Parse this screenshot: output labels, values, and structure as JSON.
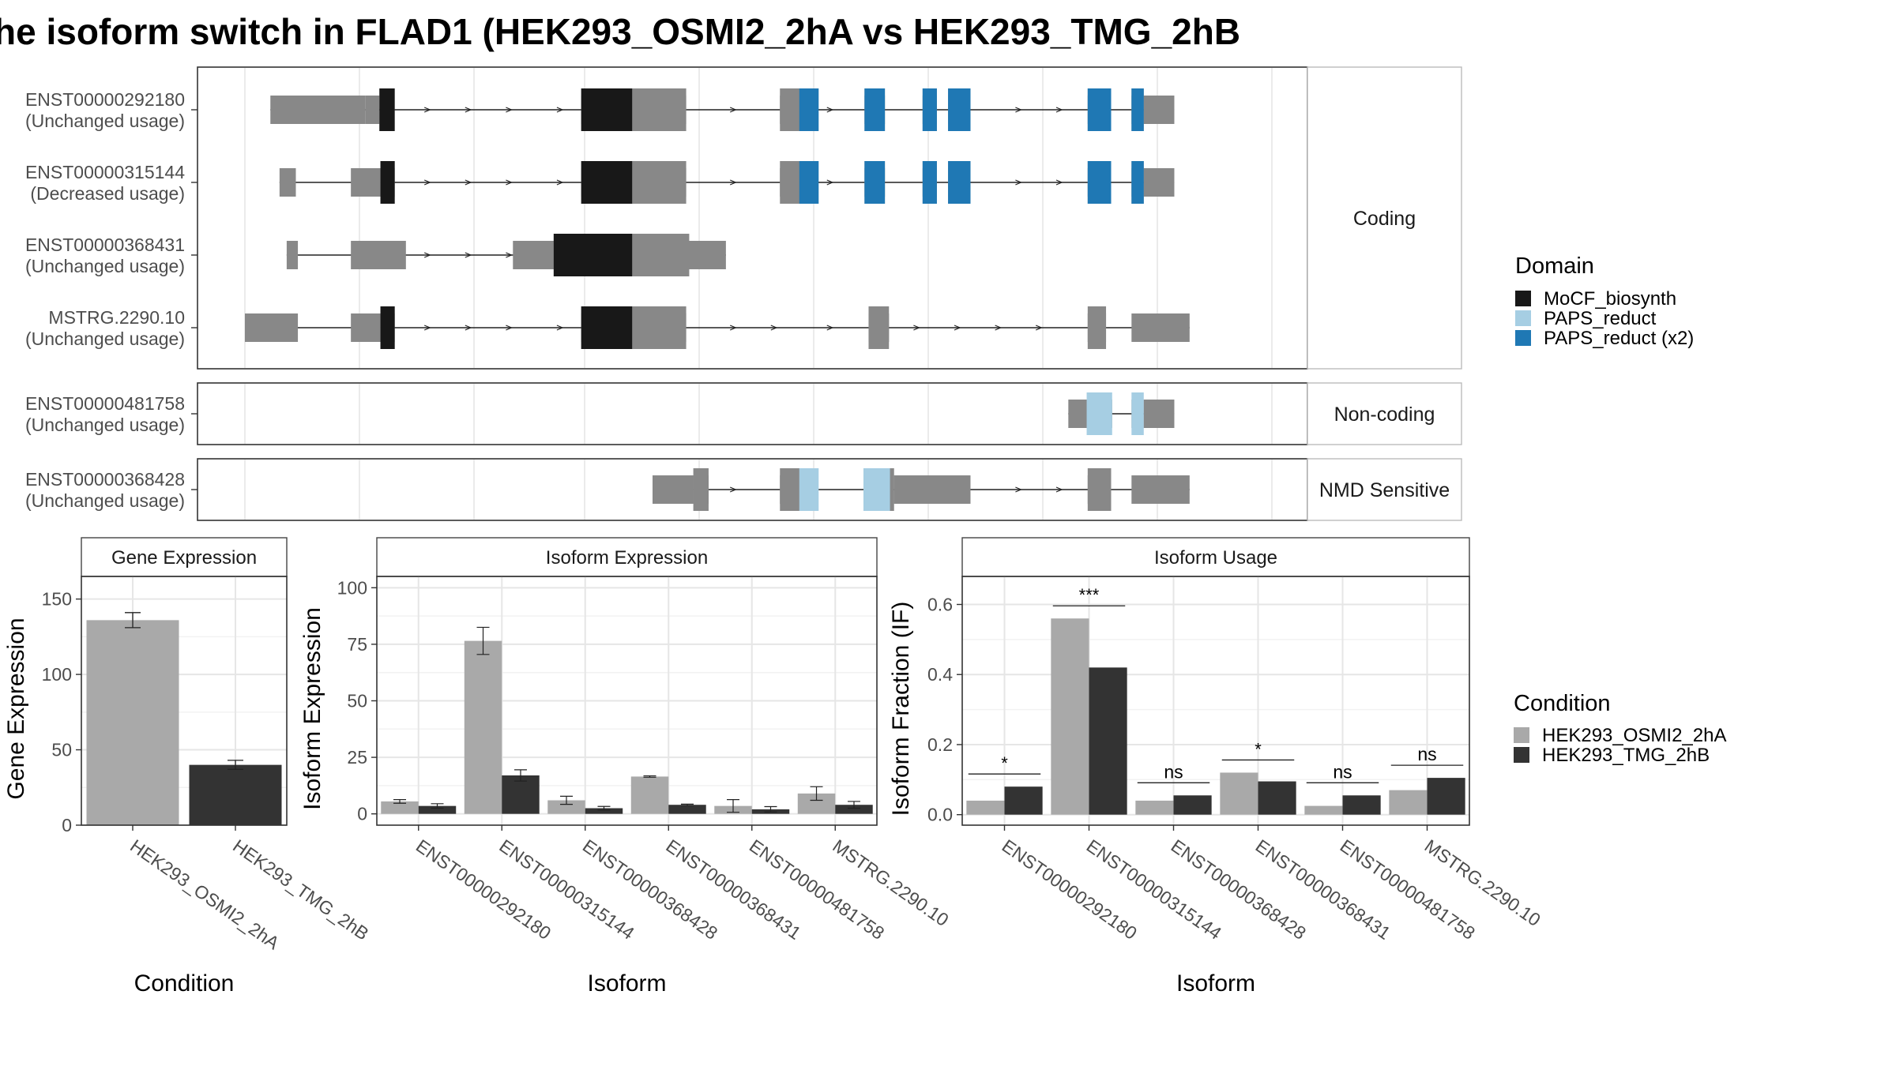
{
  "title": "he isoform switch in FLAD1 (HEK293_OSMI2_2hA vs HEK293_TMG_2hB",
  "colors": {
    "exon": "#888888",
    "mocf": "#181818",
    "paps": "#a6cee3",
    "paps2": "#1f78b4",
    "cond1": "#a9a9a9",
    "cond2": "#333333"
  },
  "structure": {
    "xlim": [
      0,
      1000
    ],
    "panels": [
      {
        "label": "Coding",
        "isoforms": [
          {
            "id": "ENST00000292180",
            "usage": "(Unchanged usage)",
            "utr": [
              [
                25,
                118
              ],
              [
                118,
                132
              ],
              [
                330,
                433
              ],
              [
                525,
                547
              ],
              [
                608,
                628
              ],
              [
                665,
                679
              ],
              [
                690,
                712
              ],
              [
                827,
                850
              ],
              [
                870,
                882
              ],
              [
                882,
                912
              ]
            ],
            "cds": [
              [
                132,
                147
              ],
              [
                330,
                433
              ],
              [
                525,
                547
              ],
              [
                608,
                628
              ],
              [
                665,
                679
              ],
              [
                690,
                712
              ],
              [
                827,
                850
              ],
              [
                870,
                882
              ]
            ],
            "domains": [
              [
                132,
                147,
                "mocf"
              ],
              [
                330,
                380,
                "mocf"
              ],
              [
                544,
                563,
                "paps2"
              ],
              [
                608,
                628,
                "paps2"
              ],
              [
                665,
                679,
                "paps2"
              ],
              [
                690,
                712,
                "paps2"
              ],
              [
                827,
                850,
                "paps2"
              ],
              [
                870,
                882,
                "paps2"
              ]
            ],
            "arrows": [
              180,
              220,
              260,
              310,
              480,
              575,
              700,
              760,
              800
            ],
            "intron": [
              25,
              912
            ]
          },
          {
            "id": "ENST00000315144",
            "usage": "(Decreased usage)",
            "utr": [
              [
                34,
                50
              ],
              [
                104,
                133
              ],
              [
                133,
                147
              ],
              [
                330,
                433
              ],
              [
                525,
                547
              ],
              [
                608,
                628
              ],
              [
                665,
                679
              ],
              [
                690,
                712
              ],
              [
                827,
                850
              ],
              [
                870,
                882
              ],
              [
                882,
                912
              ]
            ],
            "cds": [
              [
                133,
                147
              ],
              [
                330,
                433
              ],
              [
                525,
                547
              ],
              [
                608,
                628
              ],
              [
                665,
                679
              ],
              [
                690,
                712
              ],
              [
                827,
                850
              ],
              [
                870,
                882
              ]
            ],
            "domains": [
              [
                133,
                147,
                "mocf"
              ],
              [
                330,
                380,
                "mocf"
              ],
              [
                544,
                563,
                "paps2"
              ],
              [
                608,
                628,
                "paps2"
              ],
              [
                665,
                679,
                "paps2"
              ],
              [
                690,
                712,
                "paps2"
              ],
              [
                827,
                850,
                "paps2"
              ],
              [
                870,
                882,
                "paps2"
              ]
            ],
            "arrows": [
              180,
              220,
              260,
              310,
              480,
              575,
              700,
              760,
              800
            ],
            "intron": [
              34,
              912
            ]
          },
          {
            "id": "ENST00000368431",
            "usage": "(Unchanged usage)",
            "utr": [
              [
                41,
                52
              ],
              [
                104,
                158
              ],
              [
                263,
                321
              ],
              [
                321,
                472
              ]
            ],
            "cds": [
              [
                303,
                436
              ]
            ],
            "domains": [
              [
                303,
                380,
                "mocf"
              ]
            ],
            "arrows": [
              180,
              220,
              260
            ],
            "intron": [
              41,
              472
            ]
          },
          {
            "id": "MSTRG.2290.10",
            "usage": "(Unchanged usage)",
            "utr": [
              [
                0,
                52
              ],
              [
                104,
                133
              ],
              [
                133,
                147
              ],
              [
                330,
                433
              ],
              [
                612,
                632
              ],
              [
                827,
                845
              ],
              [
                870,
                927
              ]
            ],
            "cds": [
              [
                133,
                147
              ],
              [
                330,
                433
              ],
              [
                612,
                632
              ],
              [
                827,
                845
              ]
            ],
            "domains": [
              [
                133,
                147,
                "mocf"
              ],
              [
                330,
                380,
                "mocf"
              ]
            ],
            "arrows": [
              180,
              220,
              260,
              310,
              480,
              520,
              575,
              660,
              700,
              740,
              780
            ],
            "intron": [
              0,
              927
            ]
          }
        ]
      },
      {
        "label": "Non-coding",
        "isoforms": [
          {
            "id": "ENST00000481758",
            "usage": "(Unchanged usage)",
            "utr": [
              [
                808,
                826
              ],
              [
                826,
                851
              ],
              [
                870,
                882
              ],
              [
                882,
                912
              ]
            ],
            "cds": [],
            "domains": [
              [
                826,
                851,
                "paps"
              ],
              [
                870,
                882,
                "paps"
              ]
            ],
            "arrows": [],
            "intron": [
              808,
              912
            ]
          }
        ]
      },
      {
        "label": "NMD Sensitive",
        "isoforms": [
          {
            "id": "ENST00000368428",
            "usage": "(Unchanged usage)",
            "utr": [
              [
                400,
                440
              ],
              [
                440,
                455
              ],
              [
                525,
                547
              ],
              [
                607,
                637
              ],
              [
                637,
                712
              ],
              [
                827,
                850
              ],
              [
                870,
                927
              ]
            ],
            "cds": [
              [
                440,
                455
              ],
              [
                525,
                547
              ],
              [
                607,
                637
              ],
              [
                827,
                850
              ]
            ],
            "domains": [
              [
                544,
                563,
                "paps"
              ],
              [
                607,
                633,
                "paps"
              ]
            ],
            "arrows": [
              480,
              760,
              800
            ],
            "intron": [
              400,
              927
            ]
          }
        ]
      }
    ]
  },
  "chart_data": [
    {
      "type": "bar",
      "title": "Gene Expression",
      "xlabel": "Condition",
      "ylabel": "Gene Expression",
      "categories": [
        "HEK293_OSMI2_2hA",
        "HEK293_TMG_2hB"
      ],
      "values": [
        136,
        40
      ],
      "errors": [
        5,
        3
      ],
      "ylim": [
        0,
        165
      ],
      "yticks": [
        0,
        50,
        100,
        150
      ]
    },
    {
      "type": "bar",
      "title": "Isoform Expression",
      "xlabel": "Isoform",
      "ylabel": "Isoform Expression",
      "categories": [
        "ENST00000292180",
        "ENST00000315144",
        "ENST00000368428",
        "ENST00000368431",
        "ENST00000481758",
        "MSTRG.2290.10"
      ],
      "series": [
        {
          "values": [
            5.5,
            76.5,
            6,
            16.5,
            3.5,
            9
          ]
        },
        {
          "values": [
            3.5,
            17,
            2.5,
            4,
            2,
            4
          ]
        }
      ],
      "errors": [
        [
          0.8,
          6,
          1.8,
          0.3,
          2.8,
          3
        ],
        [
          1,
          2.5,
          0.8,
          0.3,
          1.2,
          1.5
        ]
      ],
      "ylim": [
        -5,
        105
      ],
      "yticks": [
        0,
        25,
        50,
        75,
        100
      ]
    },
    {
      "type": "bar",
      "title": "Isoform Usage",
      "xlabel": "Isoform",
      "ylabel": "Isoform Fraction (IF)",
      "categories": [
        "ENST00000292180",
        "ENST00000315144",
        "ENST00000368428",
        "ENST00000368431",
        "ENST00000481758",
        "MSTRG.2290.10"
      ],
      "series": [
        {
          "values": [
            0.04,
            0.56,
            0.04,
            0.12,
            0.025,
            0.07
          ]
        },
        {
          "values": [
            0.08,
            0.42,
            0.055,
            0.095,
            0.055,
            0.105
          ]
        }
      ],
      "significance": [
        "*",
        "***",
        "ns",
        "*",
        "ns",
        "ns"
      ],
      "ylim": [
        -0.03,
        0.68
      ],
      "yticks": [
        0.0,
        0.2,
        0.4,
        0.6
      ],
      "ytick_labels": [
        "0.0",
        "0.2",
        "0.4",
        "0.6"
      ]
    }
  ],
  "legends": {
    "domain": {
      "title": "Domain",
      "items": [
        {
          "label": "MoCF_biosynth",
          "color": "#181818"
        },
        {
          "label": "PAPS_reduct",
          "color": "#a6cee3"
        },
        {
          "label": "PAPS_reduct (x2)",
          "color": "#1f78b4"
        }
      ]
    },
    "condition": {
      "title": "Condition",
      "items": [
        {
          "label": "HEK293_OSMI2_2hA",
          "color": "#a9a9a9"
        },
        {
          "label": "HEK293_TMG_2hB",
          "color": "#333333"
        }
      ]
    }
  }
}
